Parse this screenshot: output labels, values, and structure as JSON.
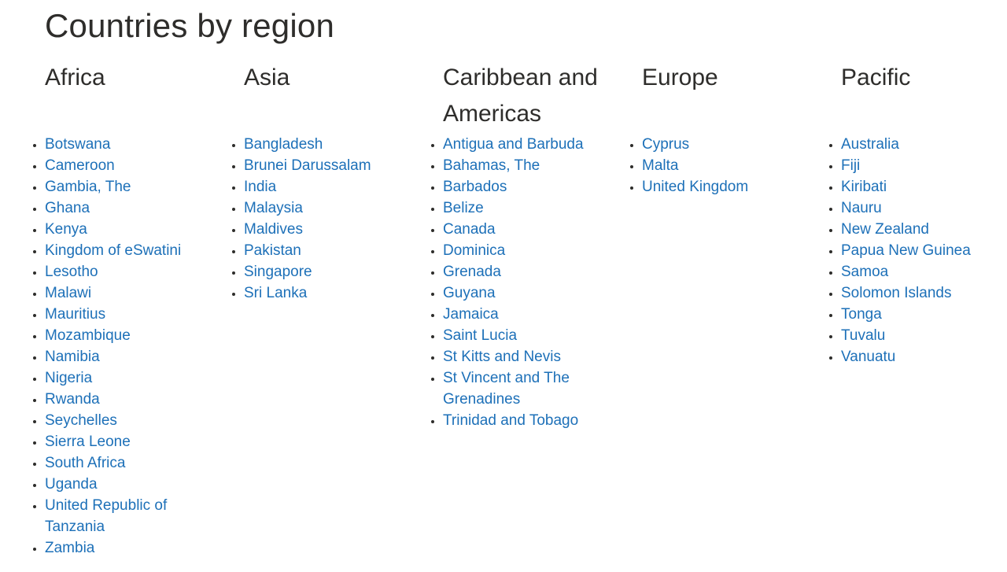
{
  "page": {
    "title": "Countries by region"
  },
  "colors": {
    "link_blue": "#1d70b8",
    "heading_text": "#2e2d2b",
    "background": "#ffffff"
  },
  "regions": [
    {
      "name": "Africa",
      "countries": [
        "Botswana",
        "Cameroon",
        "Gambia, The",
        "Ghana",
        "Kenya",
        "Kingdom of eSwatini",
        "Lesotho",
        "Malawi",
        "Mauritius",
        "Mozambique",
        "Namibia",
        "Nigeria",
        "Rwanda",
        "Seychelles",
        "Sierra Leone",
        "South Africa",
        "Uganda",
        "United Republic of Tanzania",
        "Zambia"
      ]
    },
    {
      "name": "Asia",
      "countries": [
        "Bangladesh",
        "Brunei Darussalam",
        "India",
        "Malaysia",
        "Maldives",
        "Pakistan",
        "Singapore",
        "Sri Lanka"
      ]
    },
    {
      "name": "Caribbean and Americas",
      "countries": [
        "Antigua and Barbuda",
        "Bahamas, The",
        "Barbados",
        "Belize",
        "Canada",
        "Dominica",
        "Grenada",
        "Guyana",
        "Jamaica",
        "Saint Lucia",
        "St Kitts and Nevis",
        "St Vincent and The Grenadines",
        "Trinidad and Tobago"
      ]
    },
    {
      "name": "Europe",
      "countries": [
        "Cyprus",
        "Malta",
        "United Kingdom"
      ]
    },
    {
      "name": "Pacific",
      "countries": [
        "Australia",
        "Fiji",
        "Kiribati",
        "Nauru",
        "New Zealand",
        "Papua New Guinea",
        "Samoa",
        "Solomon Islands",
        "Tonga",
        "Tuvalu",
        "Vanuatu"
      ]
    }
  ]
}
